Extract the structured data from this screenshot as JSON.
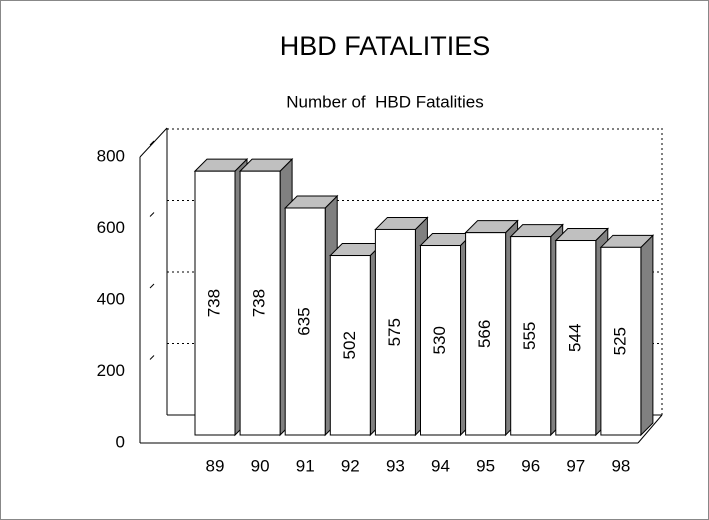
{
  "chart_data": {
    "type": "bar",
    "title": "HBD FATALITIES",
    "subtitle": "Number of  HBD Fatalities",
    "categories": [
      "89",
      "90",
      "91",
      "92",
      "93",
      "94",
      "95",
      "96",
      "97",
      "98"
    ],
    "values": [
      738,
      738,
      635,
      502,
      575,
      530,
      566,
      555,
      544,
      525
    ],
    "color": "#ffffff",
    "side_color": "#808080",
    "top_color": "#c0c0c0",
    "ylim": [
      0,
      800
    ],
    "yticks": [
      0,
      200,
      400,
      600,
      800
    ],
    "grid": true
  }
}
